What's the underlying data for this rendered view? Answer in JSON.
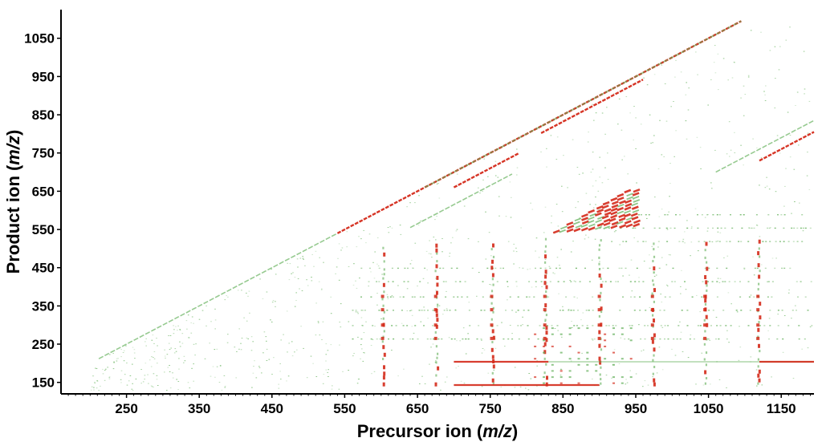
{
  "chart_data": {
    "type": "heatmap",
    "title": "",
    "xlabel": {
      "prefix": "Precursor ion (",
      "italic": "m/z",
      "suffix": ")"
    },
    "ylabel": {
      "prefix": "Product ion (",
      "italic": "m/z",
      "suffix": ")"
    },
    "xlim": [
      160,
      1195
    ],
    "ylim": [
      120,
      1125
    ],
    "x_ticks": [
      250,
      350,
      450,
      550,
      650,
      750,
      850,
      950,
      1050,
      1150
    ],
    "y_ticks": [
      150,
      250,
      350,
      450,
      550,
      650,
      750,
      850,
      950,
      1050
    ],
    "grid": false,
    "colors": {
      "strong": "#d42a1a",
      "weak": "#5fae55",
      "axis": "#000000",
      "background": "#ffffff"
    },
    "features": {
      "diagonals": [
        {
          "x": [
            540,
            1095
          ],
          "offset": 0,
          "color": "strong"
        },
        {
          "x": [
            660,
            1095
          ],
          "offset": 0,
          "color": "weak"
        },
        {
          "x": [
            212,
            540
          ],
          "offset": 0,
          "color": "weak"
        },
        {
          "x": [
            820,
            960
          ],
          "offset": -18,
          "color": "strong"
        },
        {
          "x": [
            700,
            790
          ],
          "offset": -40,
          "color": "strong"
        },
        {
          "x": [
            640,
            780
          ],
          "offset": -85,
          "color": "weak"
        },
        {
          "x": [
            1120,
            1195
          ],
          "offset": -390,
          "color": "strong"
        },
        {
          "x": [
            1060,
            1195
          ],
          "offset": -360,
          "color": "weak"
        }
      ],
      "horizontal_lines": [
        {
          "y": 204,
          "x": [
            700,
            830
          ],
          "color": "strong"
        },
        {
          "y": 204,
          "x": [
            830,
            1195
          ],
          "color": "weak"
        },
        {
          "y": 204,
          "x": [
            1120,
            1195
          ],
          "color": "strong"
        },
        {
          "y": 143,
          "x": [
            700,
            900
          ],
          "color": "strong"
        }
      ],
      "cluster": {
        "x": [
          750,
          950
        ],
        "y": [
          540,
          670
        ],
        "description": "dense grid of peaks in upper-middle region"
      },
      "vertical_streak_x": [
        602,
        675,
        752,
        825,
        900,
        973,
        1045,
        1118
      ],
      "horizontal_band_y": [
        265,
        300,
        340,
        375,
        415,
        450,
        520,
        555,
        590
      ]
    }
  }
}
